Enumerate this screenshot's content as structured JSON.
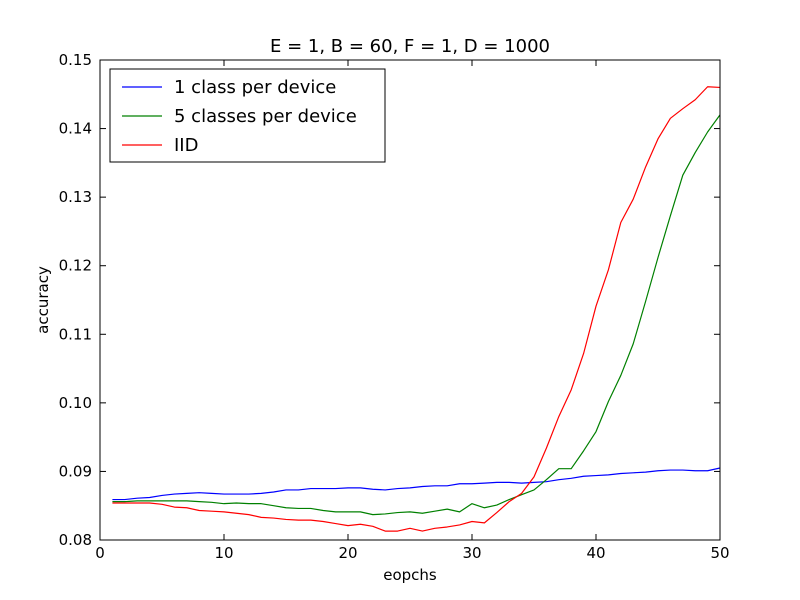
{
  "chart_data": {
    "type": "line",
    "title": "E = 1, B = 60, F = 1, D = 1000",
    "xlabel": "eopchs",
    "ylabel": "accuracy",
    "xlim": [
      0,
      50
    ],
    "ylim": [
      0.08,
      0.15
    ],
    "xticks": [
      0,
      10,
      20,
      30,
      40,
      50
    ],
    "yticks": [
      0.08,
      0.09,
      0.1,
      0.11,
      0.12,
      0.13,
      0.14,
      0.15
    ],
    "ytick_labels": [
      "0.08",
      "0.09",
      "0.10",
      "0.11",
      "0.12",
      "0.13",
      "0.14",
      "0.15"
    ],
    "xtick_labels": [
      "0",
      "10",
      "20",
      "30",
      "40",
      "50"
    ],
    "grid": false,
    "legend_position": "top-left",
    "x": [
      1,
      2,
      3,
      4,
      5,
      6,
      7,
      8,
      9,
      10,
      11,
      12,
      13,
      14,
      15,
      16,
      17,
      18,
      19,
      20,
      21,
      22,
      23,
      24,
      25,
      26,
      27,
      28,
      29,
      30,
      31,
      32,
      33,
      34,
      35,
      36,
      37,
      38,
      39,
      40,
      41,
      42,
      43,
      44,
      45,
      46,
      47,
      48,
      49,
      50
    ],
    "series": [
      {
        "name": "1 class per device",
        "color": "#0000ff",
        "values": [
          0.0859,
          0.0859,
          0.0861,
          0.0862,
          0.0865,
          0.0867,
          0.0868,
          0.0869,
          0.0868,
          0.0867,
          0.0867,
          0.0867,
          0.0868,
          0.087,
          0.0873,
          0.0873,
          0.0875,
          0.0875,
          0.0875,
          0.0876,
          0.0876,
          0.0874,
          0.0873,
          0.0875,
          0.0876,
          0.0878,
          0.0879,
          0.0879,
          0.0882,
          0.0882,
          0.0883,
          0.0884,
          0.0884,
          0.0883,
          0.0884,
          0.0885,
          0.0888,
          0.089,
          0.0893,
          0.0894,
          0.0895,
          0.0897,
          0.0898,
          0.0899,
          0.0901,
          0.0902,
          0.0902,
          0.0901,
          0.0901,
          0.0905
        ]
      },
      {
        "name": "5 classes per device",
        "color": "#008000",
        "values": [
          0.0856,
          0.0856,
          0.0857,
          0.0857,
          0.0857,
          0.0857,
          0.0857,
          0.0856,
          0.0855,
          0.0853,
          0.0854,
          0.0853,
          0.0853,
          0.085,
          0.0847,
          0.0846,
          0.0846,
          0.0843,
          0.0841,
          0.0841,
          0.0841,
          0.0837,
          0.0838,
          0.084,
          0.0841,
          0.0839,
          0.0842,
          0.0845,
          0.0841,
          0.0853,
          0.0847,
          0.0851,
          0.0859,
          0.0866,
          0.0873,
          0.0888,
          0.0904,
          0.0904,
          0.093,
          0.0958,
          0.1002,
          0.104,
          0.1086,
          0.1148,
          0.1212,
          0.1273,
          0.1332,
          0.1365,
          0.1395,
          0.142
        ]
      },
      {
        "name": "IID",
        "color": "#ff0000",
        "values": [
          0.0854,
          0.0854,
          0.0854,
          0.0854,
          0.0852,
          0.0848,
          0.0847,
          0.0843,
          0.0842,
          0.0841,
          0.0839,
          0.0837,
          0.0833,
          0.0832,
          0.083,
          0.0829,
          0.0829,
          0.0827,
          0.0824,
          0.0821,
          0.0823,
          0.082,
          0.0813,
          0.0813,
          0.0817,
          0.0813,
          0.0817,
          0.0819,
          0.0822,
          0.0827,
          0.0825,
          0.084,
          0.0856,
          0.0868,
          0.0892,
          0.0934,
          0.098,
          0.1019,
          0.1072,
          0.1141,
          0.1194,
          0.1263,
          0.1297,
          0.1344,
          0.1385,
          0.1415,
          0.1429,
          0.1442,
          0.1461,
          0.146
        ]
      }
    ]
  }
}
